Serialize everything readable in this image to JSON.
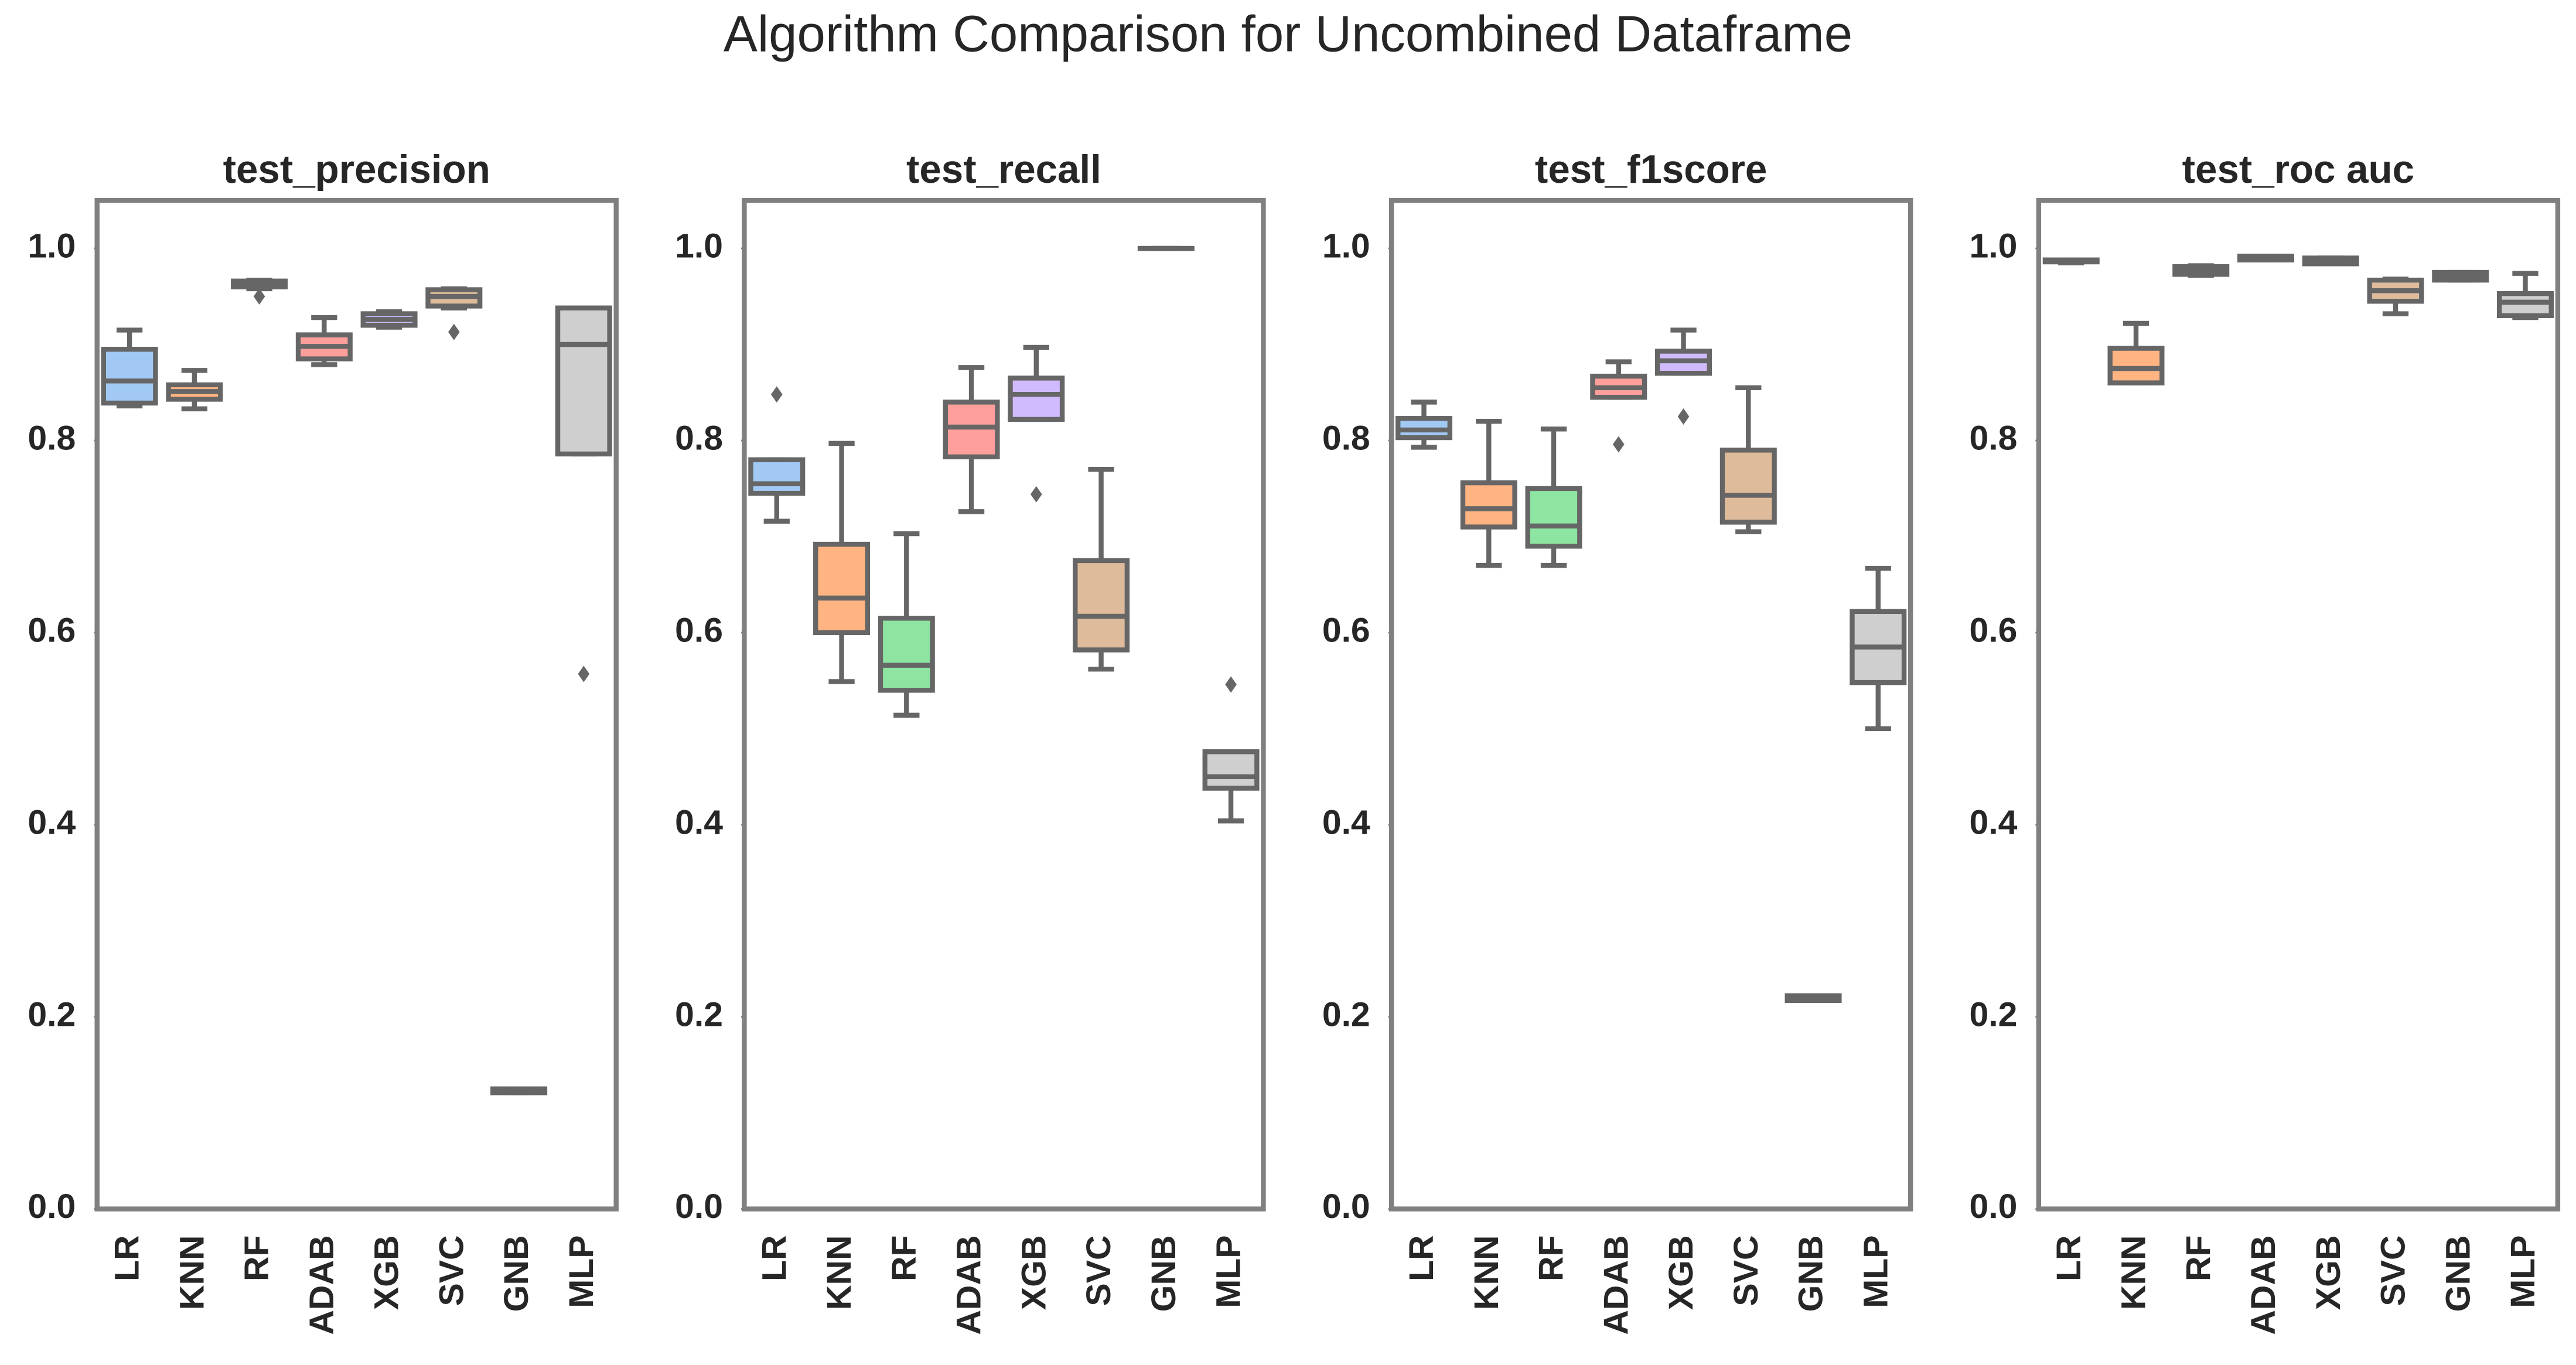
{
  "title": "Algorithm Comparison for Uncombined Dataframe",
  "chart_data": [
    {
      "type": "box",
      "title": "test_precision",
      "categories": [
        "LR",
        "KNN",
        "RF",
        "ADAB",
        "XGB",
        "SVC",
        "GNB",
        "MLP"
      ],
      "colors": [
        "#a1c9f4",
        "#ffb482",
        "#8de5a1",
        "#ff9f9b",
        "#d0bbff",
        "#debb9b",
        "#fab0e4",
        "#cfcfcf"
      ],
      "boxes": [
        {
          "whislo": 0.836,
          "q1": 0.839,
          "med": 0.862,
          "q3": 0.895,
          "whishi": 0.915,
          "fliers": []
        },
        {
          "whislo": 0.833,
          "q1": 0.843,
          "med": 0.851,
          "q3": 0.858,
          "whishi": 0.873,
          "fliers": []
        },
        {
          "whislo": 0.958,
          "q1": 0.96,
          "med": 0.963,
          "q3": 0.966,
          "whishi": 0.967,
          "fliers": [
            0.95
          ]
        },
        {
          "whislo": 0.879,
          "q1": 0.885,
          "med": 0.898,
          "q3": 0.91,
          "whishi": 0.928,
          "fliers": []
        },
        {
          "whislo": 0.918,
          "q1": 0.92,
          "med": 0.926,
          "q3": 0.932,
          "whishi": 0.934,
          "fliers": []
        },
        {
          "whislo": 0.938,
          "q1": 0.94,
          "med": 0.95,
          "q3": 0.957,
          "whishi": 0.958,
          "fliers": [
            0.913
          ]
        },
        {
          "whislo": 0.121,
          "q1": 0.121,
          "med": 0.123,
          "q3": 0.125,
          "whishi": 0.125,
          "fliers": []
        },
        {
          "whislo": 0.786,
          "q1": 0.786,
          "med": 0.9,
          "q3": 0.938,
          "whishi": 0.938,
          "fliers": [
            0.557
          ]
        }
      ],
      "ylim": [
        0,
        1.05
      ],
      "yticks": [
        {
          "value": 0,
          "label": "0.0"
        },
        0.2,
        0.4,
        0.6,
        0.8,
        {
          "value": 1,
          "label": "1.0"
        }
      ]
    },
    {
      "type": "box",
      "title": "test_recall",
      "categories": [
        "LR",
        "KNN",
        "RF",
        "ADAB",
        "XGB",
        "SVC",
        "GNB",
        "MLP"
      ],
      "colors": [
        "#a1c9f4",
        "#ffb482",
        "#8de5a1",
        "#ff9f9b",
        "#d0bbff",
        "#debb9b",
        "#fab0e4",
        "#cfcfcf"
      ],
      "boxes": [
        {
          "whislo": 0.716,
          "q1": 0.745,
          "med": 0.755,
          "q3": 0.78,
          "whishi": 0.78,
          "fliers": [
            0.848
          ]
        },
        {
          "whislo": 0.549,
          "q1": 0.6,
          "med": 0.636,
          "q3": 0.692,
          "whishi": 0.797,
          "fliers": []
        },
        {
          "whislo": 0.514,
          "q1": 0.54,
          "med": 0.566,
          "q3": 0.615,
          "whishi": 0.703,
          "fliers": []
        },
        {
          "whislo": 0.726,
          "q1": 0.783,
          "med": 0.814,
          "q3": 0.84,
          "whishi": 0.876,
          "fliers": []
        },
        {
          "whislo": 0.822,
          "q1": 0.822,
          "med": 0.848,
          "q3": 0.865,
          "whishi": 0.897,
          "fliers": [
            0.744
          ]
        },
        {
          "whislo": 0.562,
          "q1": 0.582,
          "med": 0.617,
          "q3": 0.675,
          "whishi": 0.77,
          "fliers": []
        },
        {
          "whislo": 1,
          "q1": 1,
          "med": 1,
          "q3": 1,
          "whishi": 1,
          "fliers": []
        },
        {
          "whislo": 0.404,
          "q1": 0.438,
          "med": 0.45,
          "q3": 0.476,
          "whishi": 0.476,
          "fliers": [
            0.546
          ]
        }
      ],
      "ylim": [
        0,
        1.05
      ],
      "yticks": [
        {
          "value": 0,
          "label": "0.0"
        },
        0.2,
        0.4,
        0.6,
        0.8,
        {
          "value": 1,
          "label": "1.0"
        }
      ]
    },
    {
      "type": "box",
      "title": "test_f1score",
      "categories": [
        "LR",
        "KNN",
        "RF",
        "ADAB",
        "XGB",
        "SVC",
        "GNB",
        "MLP"
      ],
      "colors": [
        "#a1c9f4",
        "#ffb482",
        "#8de5a1",
        "#ff9f9b",
        "#d0bbff",
        "#debb9b",
        "#fab0e4",
        "#cfcfcf"
      ],
      "boxes": [
        {
          "whislo": 0.793,
          "q1": 0.803,
          "med": 0.811,
          "q3": 0.823,
          "whishi": 0.84,
          "fliers": []
        },
        {
          "whislo": 0.67,
          "q1": 0.71,
          "med": 0.729,
          "q3": 0.756,
          "whishi": 0.82,
          "fliers": []
        },
        {
          "whislo": 0.67,
          "q1": 0.69,
          "med": 0.711,
          "q3": 0.75,
          "whishi": 0.812,
          "fliers": []
        },
        {
          "whislo": 0.845,
          "q1": 0.845,
          "med": 0.855,
          "q3": 0.867,
          "whishi": 0.882,
          "fliers": [
            0.796
          ]
        },
        {
          "whislo": 0.87,
          "q1": 0.87,
          "med": 0.883,
          "q3": 0.893,
          "whishi": 0.915,
          "fliers": [
            0.825
          ]
        },
        {
          "whislo": 0.705,
          "q1": 0.715,
          "med": 0.743,
          "q3": 0.79,
          "whishi": 0.855,
          "fliers": []
        },
        {
          "whislo": 0.217,
          "q1": 0.217,
          "med": 0.22,
          "q3": 0.222,
          "whishi": 0.222,
          "fliers": []
        },
        {
          "whislo": 0.5,
          "q1": 0.548,
          "med": 0.585,
          "q3": 0.622,
          "whishi": 0.667,
          "fliers": []
        }
      ],
      "ylim": [
        0,
        1.05
      ],
      "yticks": [
        {
          "value": 0,
          "label": "0.0"
        },
        0.2,
        0.4,
        0.6,
        0.8,
        {
          "value": 1,
          "label": "1.0"
        }
      ]
    },
    {
      "type": "box",
      "title": "test_roc auc",
      "categories": [
        "LR",
        "KNN",
        "RF",
        "ADAB",
        "XGB",
        "SVC",
        "GNB",
        "MLP"
      ],
      "colors": [
        "#a1c9f4",
        "#ffb482",
        "#8de5a1",
        "#ff9f9b",
        "#d0bbff",
        "#debb9b",
        "#fab0e4",
        "#cfcfcf"
      ],
      "boxes": [
        {
          "whislo": 0.985,
          "q1": 0.986,
          "med": 0.987,
          "q3": 0.988,
          "whishi": 0.988,
          "fliers": []
        },
        {
          "whislo": 0.86,
          "q1": 0.86,
          "med": 0.875,
          "q3": 0.896,
          "whishi": 0.922,
          "fliers": []
        },
        {
          "whislo": 0.972,
          "q1": 0.973,
          "med": 0.977,
          "q3": 0.981,
          "whishi": 0.982,
          "fliers": []
        },
        {
          "whislo": 0.988,
          "q1": 0.988,
          "med": 0.99,
          "q3": 0.992,
          "whishi": 0.992,
          "fliers": []
        },
        {
          "whislo": 0.984,
          "q1": 0.984,
          "med": 0.987,
          "q3": 0.99,
          "whishi": 0.99,
          "fliers": []
        },
        {
          "whislo": 0.932,
          "q1": 0.945,
          "med": 0.956,
          "q3": 0.967,
          "whishi": 0.968,
          "fliers": []
        },
        {
          "whislo": 0.967,
          "q1": 0.967,
          "med": 0.971,
          "q3": 0.975,
          "whishi": 0.975,
          "fliers": []
        },
        {
          "whislo": 0.928,
          "q1": 0.93,
          "med": 0.944,
          "q3": 0.953,
          "whishi": 0.974,
          "fliers": []
        }
      ],
      "ylim": [
        0,
        1.05
      ],
      "yticks": [
        {
          "value": 0,
          "label": "0.0"
        },
        0.2,
        0.4,
        0.6,
        0.8,
        {
          "value": 1,
          "label": "1.0"
        }
      ]
    }
  ]
}
